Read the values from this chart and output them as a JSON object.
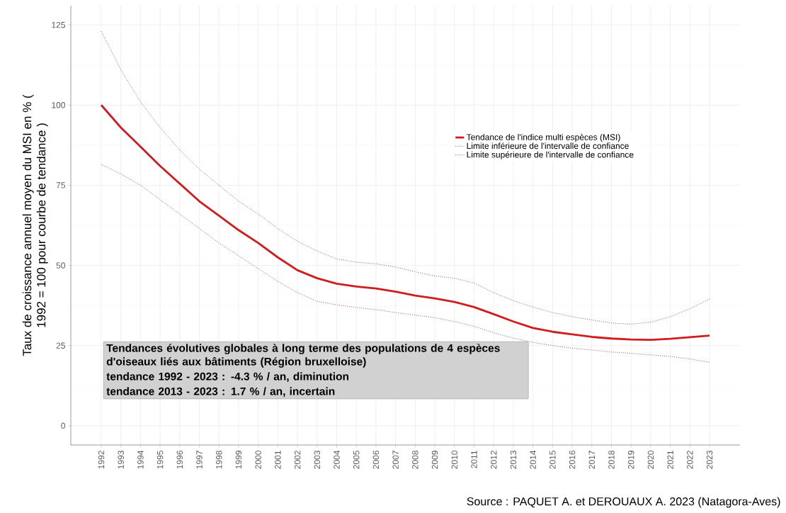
{
  "chart_data": {
    "type": "line",
    "ylabel": "Taux de croissance annuel moyen du MSI en % ( 1992 = 100 pour courbe de tendance )",
    "x": [
      1992,
      1993,
      1994,
      1995,
      1996,
      1997,
      1998,
      1999,
      2000,
      2001,
      2002,
      2003,
      2004,
      2005,
      2006,
      2007,
      2008,
      2009,
      2010,
      2011,
      2012,
      2013,
      2014,
      2015,
      2016,
      2017,
      2018,
      2019,
      2020,
      2021,
      2022,
      2023
    ],
    "series": [
      {
        "name": "Tendance de l'indice multi espèces (MSI)",
        "color": "#d01c1c",
        "line_style": "solid",
        "values": [
          100,
          93,
          87,
          81,
          75.5,
          70,
          65.5,
          61,
          57,
          52.5,
          48.5,
          46,
          44.3,
          43.4,
          42.8,
          41.8,
          40.6,
          39.7,
          38.6,
          37,
          34.8,
          32.5,
          30.5,
          29.3,
          28.5,
          27.7,
          27.2,
          26.9,
          26.8,
          27.1,
          27.6,
          28.1
        ]
      },
      {
        "name": "Limite inférieure de l'intervalle de confiance",
        "color": "#a52a2a",
        "line_style": "dotted",
        "values": [
          81.5,
          78.5,
          75,
          70.5,
          66,
          61.5,
          57,
          53,
          49,
          45,
          41.5,
          38.8,
          37.7,
          36.9,
          36.2,
          35.3,
          34.5,
          33.7,
          32.5,
          31,
          29,
          27.3,
          26,
          25,
          24.2,
          23.6,
          23,
          22.6,
          22.1,
          21.6,
          20.8,
          19.8
        ]
      },
      {
        "name": "Limite supérieure de l'intervalle de confiance",
        "color": "#a52a2a",
        "line_style": "dotted",
        "values": [
          123,
          111,
          101,
          93,
          86,
          80,
          75,
          70,
          66,
          61.5,
          57.5,
          54.5,
          52,
          51,
          50.5,
          49.5,
          48,
          46.7,
          46,
          44.5,
          41.5,
          39,
          37,
          35.3,
          34,
          33,
          32,
          31.7,
          32.3,
          34,
          36.5,
          39.5
        ]
      }
    ],
    "xlim": [
      1990.45,
      2024.55
    ],
    "xticks": [
      1992,
      1993,
      1994,
      1995,
      1996,
      1997,
      1998,
      1999,
      2000,
      2001,
      2002,
      2003,
      2004,
      2005,
      2006,
      2007,
      2008,
      2009,
      2010,
      2011,
      2012,
      2013,
      2014,
      2015,
      2016,
      2017,
      2018,
      2019,
      2020,
      2021,
      2022,
      2023
    ],
    "ylim": [
      -6,
      131
    ],
    "yticks": [
      0,
      25,
      50,
      75,
      100,
      125
    ],
    "grid": true,
    "legend": "top right",
    "annotations": [
      "Tendances évolutives globales à long terme des populations de 4 espèces d'oiseaux liés aux bâtiments (Région bruxelloise)",
      " tendance 1992 - 2023 : -4.3 % / an, diminution",
      " tendance 2013 - 2023 : 1.7 % / an, incertain",
      "Source : PAQUET A. et DEROUAUX A. 2023 (Natagora-Aves)"
    ]
  }
}
